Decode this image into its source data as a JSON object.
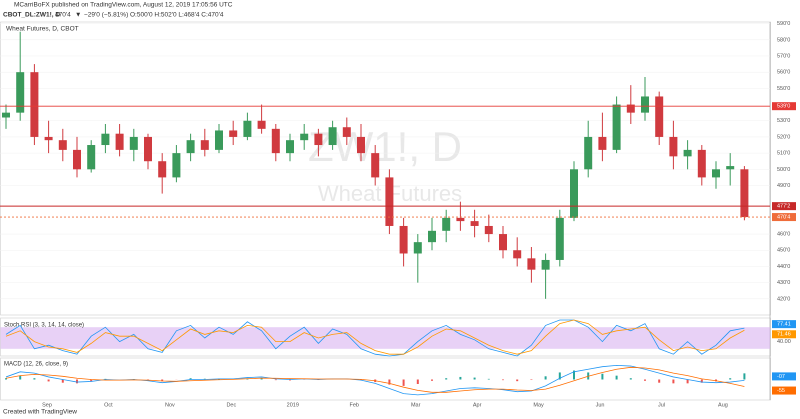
{
  "header": {
    "publisher": "MCarriBoFX published on TradingView.com, August 12, 2019 17:05:56 UTC",
    "symbol": "CBOT_DL:ZW1!, D",
    "last": "470'4",
    "arrow": "▼",
    "change": "−29'0 (−5.81%)",
    "ohlc": "O:500'0 H:502'0 L:468'4 C:470'4"
  },
  "chart_data": {
    "type": "candlestick",
    "title": "Wheat Futures, D, CBOT",
    "watermark": [
      "ZW1!, D",
      "Wheat Futures"
    ],
    "up_color": "#3a9a5b",
    "down_color": "#d03a3f",
    "candles": [
      [
        532,
        540,
        525,
        535
      ],
      [
        535,
        585,
        530,
        560
      ],
      [
        560,
        565,
        515,
        520
      ],
      [
        520,
        530,
        510,
        518
      ],
      [
        518,
        525,
        505,
        512
      ],
      [
        512,
        520,
        495,
        500
      ],
      [
        500,
        518,
        498,
        515
      ],
      [
        515,
        528,
        510,
        522
      ],
      [
        522,
        528,
        508,
        512
      ],
      [
        512,
        525,
        505,
        520
      ],
      [
        520,
        522,
        500,
        505
      ],
      [
        505,
        510,
        485,
        495
      ],
      [
        495,
        515,
        492,
        510
      ],
      [
        510,
        522,
        505,
        518
      ],
      [
        518,
        525,
        508,
        512
      ],
      [
        512,
        528,
        510,
        524
      ],
      [
        524,
        530,
        515,
        520
      ],
      [
        520,
        535,
        518,
        530
      ],
      [
        530,
        540,
        522,
        525
      ],
      [
        525,
        528,
        505,
        510
      ],
      [
        510,
        522,
        505,
        518
      ],
      [
        518,
        528,
        512,
        522
      ],
      [
        522,
        525,
        508,
        515
      ],
      [
        515,
        530,
        512,
        526
      ],
      [
        526,
        532,
        515,
        520
      ],
      [
        520,
        528,
        505,
        510
      ],
      [
        510,
        515,
        490,
        495
      ],
      [
        495,
        500,
        460,
        465
      ],
      [
        465,
        470,
        440,
        448
      ],
      [
        448,
        460,
        430,
        455
      ],
      [
        455,
        470,
        450,
        462
      ],
      [
        462,
        475,
        455,
        470
      ],
      [
        470,
        480,
        462,
        468
      ],
      [
        468,
        475,
        458,
        465
      ],
      [
        465,
        472,
        455,
        460
      ],
      [
        460,
        465,
        445,
        450
      ],
      [
        450,
        458,
        440,
        445
      ],
      [
        445,
        452,
        430,
        438
      ],
      [
        438,
        448,
        420,
        444
      ],
      [
        444,
        475,
        440,
        470
      ],
      [
        470,
        505,
        468,
        500
      ],
      [
        500,
        530,
        495,
        520
      ],
      [
        520,
        535,
        505,
        512
      ],
      [
        512,
        545,
        510,
        540
      ],
      [
        540,
        552,
        528,
        535
      ],
      [
        535,
        557,
        530,
        545
      ],
      [
        545,
        548,
        515,
        520
      ],
      [
        520,
        530,
        500,
        508
      ],
      [
        508,
        518,
        500,
        512
      ],
      [
        512,
        515,
        490,
        495
      ],
      [
        495,
        505,
        488,
        500
      ],
      [
        500,
        510,
        490,
        502
      ],
      [
        500,
        502,
        468.5,
        470.5
      ]
    ],
    "ylim": [
      410,
      591
    ],
    "yticks": [
      {
        "value": 590,
        "label": "590'0"
      },
      {
        "value": 580,
        "label": "580'0"
      },
      {
        "value": 570,
        "label": "570'0"
      },
      {
        "value": 560,
        "label": "560'0"
      },
      {
        "value": 550,
        "label": "550'0"
      },
      {
        "value": 530,
        "label": "530'0"
      },
      {
        "value": 520,
        "label": "520'0"
      },
      {
        "value": 510,
        "label": "510'0"
      },
      {
        "value": 500,
        "label": "500'0"
      },
      {
        "value": 490,
        "label": "490'0"
      },
      {
        "value": 460,
        "label": "460'0"
      },
      {
        "value": 450,
        "label": "450'0"
      },
      {
        "value": 440,
        "label": "440'0"
      },
      {
        "value": 430,
        "label": "430'0"
      },
      {
        "value": 420,
        "label": "420'0"
      }
    ],
    "levels": [
      {
        "value": 539,
        "label": "539'0",
        "color": "#e53935",
        "dashed": false
      },
      {
        "value": 477.25,
        "label": "477'2",
        "color": "#c62828",
        "dashed": false
      },
      {
        "value": 470.5,
        "label": "470'4",
        "color": "#ef6c3a",
        "dashed": true
      }
    ],
    "xlabels": [
      "Sep",
      "Oct",
      "Nov",
      "Dec",
      "2019",
      "Feb",
      "Mar",
      "Apr",
      "May",
      "Jun",
      "Jul",
      "Aug"
    ],
    "stoch": {
      "title": "Stoch RSI (3, 3, 14, 14, close)",
      "ylim": [
        0,
        100
      ],
      "band": [
        20,
        80
      ],
      "band_color": "#d9b3f0",
      "yticks": [
        {
          "value": 40,
          "label": "40.00"
        }
      ],
      "series": [
        {
          "color": "#2196f3",
          "values": [
            60,
            85,
            20,
            30,
            15,
            5,
            55,
            80,
            40,
            60,
            20,
            10,
            70,
            85,
            50,
            80,
            60,
            95,
            70,
            20,
            55,
            80,
            35,
            75,
            60,
            20,
            5,
            0,
            5,
            40,
            70,
            85,
            60,
            45,
            20,
            10,
            0,
            30,
            85,
            100,
            100,
            80,
            40,
            85,
            70,
            90,
            20,
            5,
            40,
            5,
            30,
            70,
            77.41
          ],
          "last_label": "77.41"
        },
        {
          "color": "#ff9800",
          "values": [
            55,
            70,
            40,
            25,
            20,
            10,
            35,
            65,
            55,
            55,
            35,
            15,
            45,
            75,
            60,
            70,
            65,
            85,
            80,
            40,
            40,
            65,
            50,
            60,
            65,
            35,
            15,
            5,
            5,
            25,
            55,
            75,
            70,
            50,
            30,
            15,
            5,
            15,
            55,
            90,
            100,
            90,
            60,
            70,
            75,
            80,
            45,
            15,
            25,
            15,
            20,
            50,
            71.46
          ],
          "last_label": "71.46"
        }
      ]
    },
    "macd": {
      "title": "MACD (12, 26, close, 9)",
      "ylim": [
        -160,
        160
      ],
      "hist_up": "#26a69a",
      "hist_down": "#ef5350",
      "series": [
        {
          "color": "#2196f3",
          "values": [
            20,
            60,
            50,
            20,
            0,
            -20,
            -15,
            0,
            -5,
            0,
            -10,
            -25,
            -15,
            0,
            0,
            5,
            5,
            15,
            20,
            5,
            0,
            5,
            0,
            5,
            5,
            -5,
            -30,
            -70,
            -110,
            -120,
            -110,
            -90,
            -70,
            -65,
            -70,
            -80,
            -95,
            -90,
            -50,
            10,
            60,
            80,
            100,
            110,
            105,
            80,
            50,
            20,
            0,
            -20,
            -25,
            -20,
            -7
          ],
          "last_label": "-07"
        },
        {
          "color": "#ff6d00",
          "values": [
            10,
            30,
            40,
            35,
            25,
            10,
            0,
            -5,
            -5,
            -3,
            -5,
            -12,
            -14,
            -10,
            -6,
            -2,
            1,
            6,
            11,
            10,
            7,
            6,
            4,
            4,
            4,
            1,
            -10,
            -30,
            -60,
            -85,
            -100,
            -100,
            -90,
            -80,
            -75,
            -75,
            -82,
            -86,
            -75,
            -45,
            -10,
            25,
            55,
            80,
            95,
            90,
            75,
            50,
            30,
            5,
            -10,
            -30,
            -55
          ],
          "last_label": "-55"
        }
      ]
    }
  },
  "footer": "Created with TradingView"
}
